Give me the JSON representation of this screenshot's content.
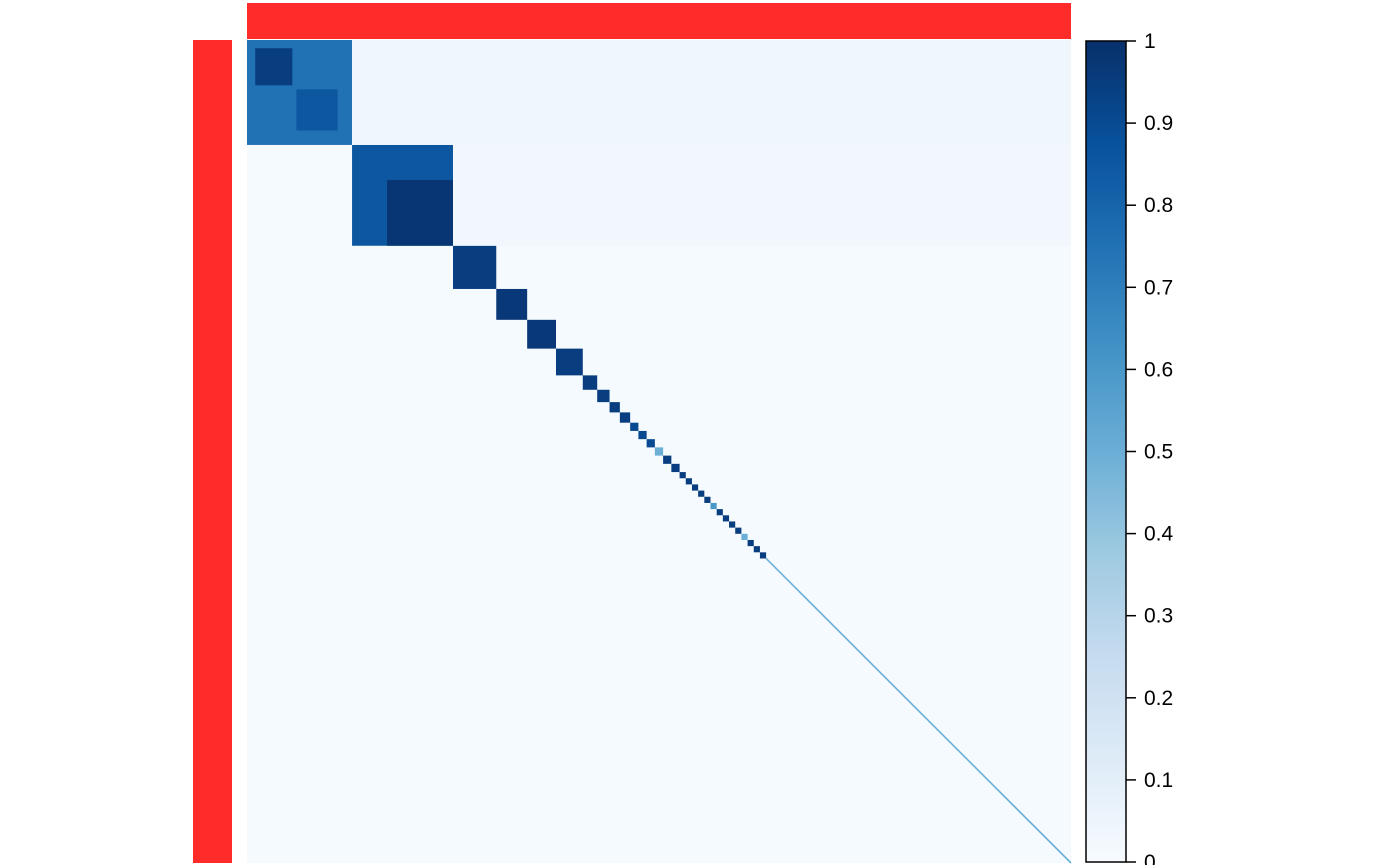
{
  "chart_data": {
    "type": "heatmap",
    "title": "",
    "xlabel": "",
    "ylabel": "",
    "matrix_kind": "consensus",
    "n_items": 400,
    "annotation_color": "#ff2b2b",
    "colorbar": {
      "min": 0,
      "max": 1,
      "ticks": [
        0,
        0.1,
        0.2,
        0.3,
        0.4,
        0.5,
        0.6,
        0.7,
        0.8,
        0.9,
        1
      ],
      "tick_labels": [
        "0",
        "0.1",
        "0.2",
        "0.3",
        "0.4",
        "0.5",
        "0.6",
        "0.7",
        "0.8",
        "0.9",
        "1"
      ],
      "colors": [
        "#f7fbff",
        "#deebf7",
        "#c6dbef",
        "#9ecae1",
        "#6baed6",
        "#4292c6",
        "#2171b5",
        "#08519c",
        "#08306b"
      ]
    },
    "clusters": [
      {
        "start": 0,
        "end": 51,
        "value": 0.75
      },
      {
        "start": 51,
        "end": 100,
        "value": 0.85
      },
      {
        "start": 100,
        "end": 121,
        "value": 0.95
      },
      {
        "start": 121,
        "end": 136,
        "value": 0.97
      },
      {
        "start": 136,
        "end": 150,
        "value": 0.97
      },
      {
        "start": 150,
        "end": 163,
        "value": 0.95
      },
      {
        "start": 163,
        "end": 170,
        "value": 0.95
      },
      {
        "start": 170,
        "end": 176,
        "value": 0.95
      },
      {
        "start": 176,
        "end": 181,
        "value": 0.95
      },
      {
        "start": 181,
        "end": 186,
        "value": 0.95
      },
      {
        "start": 186,
        "end": 190,
        "value": 0.9
      },
      {
        "start": 190,
        "end": 194,
        "value": 0.9
      },
      {
        "start": 194,
        "end": 198,
        "value": 0.9
      },
      {
        "start": 198,
        "end": 202,
        "value": 0.5
      },
      {
        "start": 202,
        "end": 206,
        "value": 0.95
      },
      {
        "start": 206,
        "end": 210,
        "value": 0.95
      },
      {
        "start": 210,
        "end": 213,
        "value": 0.95
      },
      {
        "start": 213,
        "end": 216,
        "value": 0.95
      },
      {
        "start": 216,
        "end": 219,
        "value": 0.95
      },
      {
        "start": 219,
        "end": 222,
        "value": 0.95
      },
      {
        "start": 222,
        "end": 225,
        "value": 0.95
      },
      {
        "start": 225,
        "end": 228,
        "value": 0.6
      },
      {
        "start": 228,
        "end": 231,
        "value": 0.95
      },
      {
        "start": 231,
        "end": 234,
        "value": 0.95
      },
      {
        "start": 234,
        "end": 237,
        "value": 0.95
      },
      {
        "start": 237,
        "end": 240,
        "value": 0.95
      },
      {
        "start": 240,
        "end": 243,
        "value": 0.5
      },
      {
        "start": 243,
        "end": 246,
        "value": 0.95
      },
      {
        "start": 246,
        "end": 249,
        "value": 0.95
      },
      {
        "start": 249,
        "end": 252,
        "value": 0.95
      }
    ],
    "singleton_start": 252,
    "diagonal_value": 0.5
  }
}
